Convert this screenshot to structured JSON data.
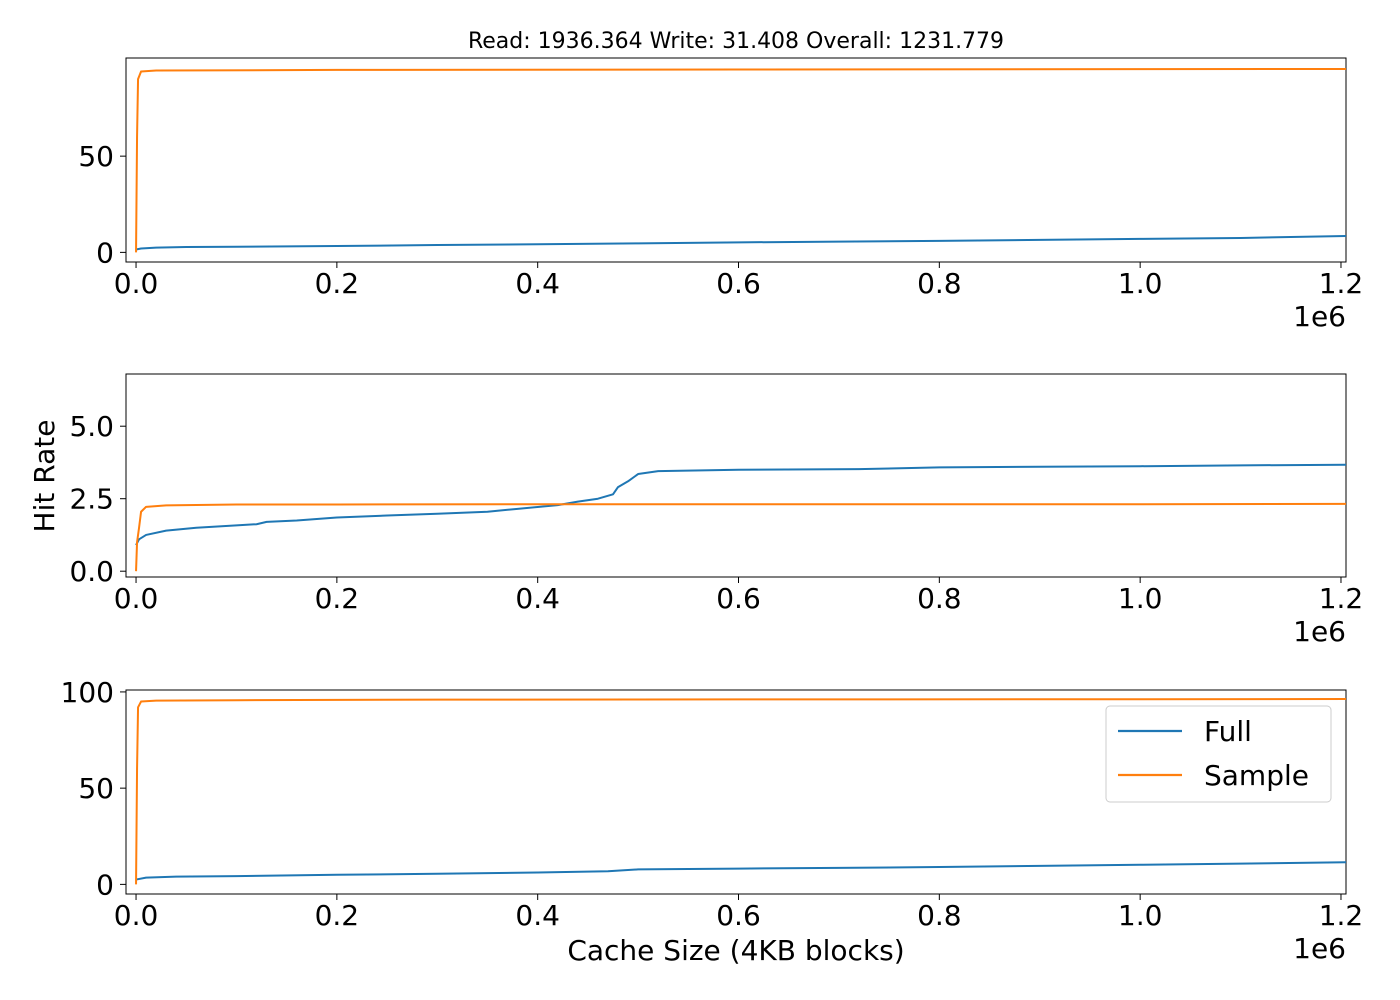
{
  "figure": {
    "title": "Read: 1936.364 Write: 31.408 Overall: 1231.779",
    "xlabel": "Cache Size (4KB blocks)",
    "ylabel": "Hit Rate",
    "offset_text": "1e6"
  },
  "legend": {
    "placement": "upper-right of bottom panel",
    "entries": [
      {
        "label": "Full",
        "color": "#1f77b4"
      },
      {
        "label": "Sample",
        "color": "#ff7f0e"
      }
    ]
  },
  "chart_data": [
    {
      "type": "line",
      "title": "Read: 1936.364 Write: 31.408 Overall: 1231.779",
      "xlabel": "",
      "ylabel": "",
      "xlim": [
        -10000,
        1205000
      ],
      "ylim": [
        -5,
        101
      ],
      "x_ticks": [
        0,
        200000,
        400000,
        600000,
        800000,
        1000000,
        1200000
      ],
      "x_tick_labels": [
        "0.0",
        "0.2",
        "0.4",
        "0.6",
        "0.8",
        "1.0",
        "1.2"
      ],
      "y_ticks": [
        0,
        50
      ],
      "y_tick_labels": [
        "0",
        "50"
      ],
      "grid": false,
      "series": [
        {
          "name": "Full",
          "color": "#1f77b4",
          "points": [
            [
              0,
              1.5
            ],
            [
              5000,
              2
            ],
            [
              20000,
              2.5
            ],
            [
              50000,
              2.8
            ],
            [
              100000,
              2.9
            ],
            [
              200000,
              3.3
            ],
            [
              300000,
              3.8
            ],
            [
              400000,
              4.2
            ],
            [
              500000,
              4.7
            ],
            [
              600000,
              5.2
            ],
            [
              700000,
              5.6
            ],
            [
              800000,
              6
            ],
            [
              900000,
              6.5
            ],
            [
              1000000,
              7
            ],
            [
              1100000,
              7.5
            ],
            [
              1205000,
              8.5
            ]
          ]
        },
        {
          "name": "Sample",
          "color": "#ff7f0e",
          "points": [
            [
              0,
              0
            ],
            [
              1000,
              60
            ],
            [
              2000,
              90
            ],
            [
              5000,
              94
            ],
            [
              20000,
              94.5
            ],
            [
              200000,
              94.8
            ],
            [
              600000,
              95
            ],
            [
              1000000,
              95.2
            ],
            [
              1205000,
              95.3
            ]
          ]
        }
      ]
    },
    {
      "type": "line",
      "xlabel": "",
      "ylabel": "Hit Rate",
      "xlim": [
        -10000,
        1205000
      ],
      "ylim": [
        -0.2,
        6.8
      ],
      "x_ticks": [
        0,
        200000,
        400000,
        600000,
        800000,
        1000000,
        1200000
      ],
      "x_tick_labels": [
        "0.0",
        "0.2",
        "0.4",
        "0.6",
        "0.8",
        "1.0",
        "1.2"
      ],
      "y_ticks": [
        0,
        2.5,
        5
      ],
      "y_tick_labels": [
        "0.0",
        "2.5",
        "5.0"
      ],
      "grid": false,
      "series": [
        {
          "name": "Full",
          "color": "#1f77b4",
          "points": [
            [
              0,
              0.9
            ],
            [
              3000,
              1.1
            ],
            [
              10000,
              1.25
            ],
            [
              30000,
              1.4
            ],
            [
              60000,
              1.5
            ],
            [
              100000,
              1.58
            ],
            [
              120000,
              1.62
            ],
            [
              130000,
              1.7
            ],
            [
              160000,
              1.75
            ],
            [
              200000,
              1.85
            ],
            [
              250000,
              1.92
            ],
            [
              300000,
              1.98
            ],
            [
              350000,
              2.05
            ],
            [
              380000,
              2.15
            ],
            [
              420000,
              2.28
            ],
            [
              440000,
              2.4
            ],
            [
              460000,
              2.5
            ],
            [
              475000,
              2.65
            ],
            [
              480000,
              2.9
            ],
            [
              490000,
              3.1
            ],
            [
              500000,
              3.35
            ],
            [
              520000,
              3.45
            ],
            [
              600000,
              3.5
            ],
            [
              720000,
              3.52
            ],
            [
              800000,
              3.58
            ],
            [
              900000,
              3.6
            ],
            [
              1000000,
              3.62
            ],
            [
              1100000,
              3.65
            ],
            [
              1205000,
              3.67
            ]
          ]
        },
        {
          "name": "Sample",
          "color": "#ff7f0e",
          "points": [
            [
              0,
              0
            ],
            [
              1000,
              1.0
            ],
            [
              3000,
              1.5
            ],
            [
              5000,
              2.05
            ],
            [
              10000,
              2.22
            ],
            [
              30000,
              2.27
            ],
            [
              100000,
              2.3
            ],
            [
              200000,
              2.3
            ],
            [
              400000,
              2.31
            ],
            [
              600000,
              2.31
            ],
            [
              800000,
              2.31
            ],
            [
              1000000,
              2.31
            ],
            [
              1205000,
              2.32
            ]
          ]
        }
      ]
    },
    {
      "type": "line",
      "xlabel": "Cache Size (4KB blocks)",
      "ylabel": "",
      "xlim": [
        -10000,
        1205000
      ],
      "ylim": [
        -5,
        101
      ],
      "x_ticks": [
        0,
        200000,
        400000,
        600000,
        800000,
        1000000,
        1200000
      ],
      "x_tick_labels": [
        "0.0",
        "0.2",
        "0.4",
        "0.6",
        "0.8",
        "1.0",
        "1.2"
      ],
      "y_ticks": [
        0,
        50,
        100
      ],
      "y_tick_labels": [
        "0",
        "50",
        "100"
      ],
      "grid": false,
      "series": [
        {
          "name": "Full",
          "color": "#1f77b4",
          "points": [
            [
              0,
              2.5
            ],
            [
              10000,
              3.5
            ],
            [
              40000,
              4
            ],
            [
              100000,
              4.3
            ],
            [
              200000,
              5
            ],
            [
              300000,
              5.5
            ],
            [
              400000,
              6.2
            ],
            [
              470000,
              6.8
            ],
            [
              500000,
              7.8
            ],
            [
              600000,
              8.2
            ],
            [
              700000,
              8.6
            ],
            [
              800000,
              9
            ],
            [
              900000,
              9.6
            ],
            [
              1000000,
              10.2
            ],
            [
              1100000,
              10.8
            ],
            [
              1205000,
              11.5
            ]
          ]
        },
        {
          "name": "Sample",
          "color": "#ff7f0e",
          "points": [
            [
              0,
              0
            ],
            [
              1000,
              60
            ],
            [
              2000,
              92
            ],
            [
              5000,
              95
            ],
            [
              20000,
              95.5
            ],
            [
              100000,
              95.7
            ],
            [
              300000,
              96
            ],
            [
              600000,
              96.1
            ],
            [
              1000000,
              96.2
            ],
            [
              1205000,
              96.3
            ]
          ]
        }
      ]
    }
  ]
}
